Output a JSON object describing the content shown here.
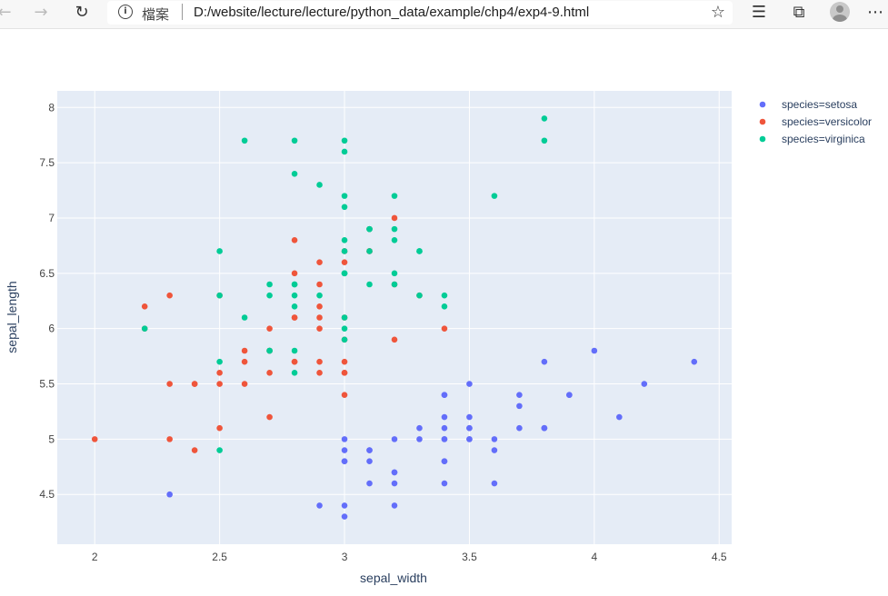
{
  "browser": {
    "url_label": "檔案",
    "url": "D:/website/lecture/lecture/python_data/example/chp4/exp4-9.html",
    "icons": [
      "back-icon",
      "forward-icon",
      "refresh-icon",
      "info-icon",
      "favorite-star-icon",
      "reading-list-icon",
      "collections-icon",
      "profile-avatar",
      "more-icon"
    ]
  },
  "colors": {
    "setosa": "#636efa",
    "versicolor": "#EF553B",
    "virginica": "#00cc96",
    "plot_bg": "#E5ECF6",
    "grid": "#ffffff"
  },
  "chart_data": {
    "type": "scatter",
    "xlabel": "sepal_width",
    "ylabel": "sepal_length",
    "xlim": [
      1.85,
      4.55
    ],
    "ylim": [
      4.05,
      8.15
    ],
    "xticks": [
      2,
      2.5,
      3,
      3.5,
      4,
      4.5
    ],
    "xtick_labels": [
      "2",
      "2.5",
      "3",
      "3.5",
      "4",
      "4.5"
    ],
    "yticks": [
      4.5,
      5,
      5.5,
      6,
      6.5,
      7,
      7.5,
      8
    ],
    "ytick_labels": [
      "4.5",
      "5",
      "5.5",
      "6",
      "6.5",
      "7",
      "7.5",
      "8"
    ],
    "grid": true,
    "legend_position": "right",
    "series": [
      {
        "name": "species=setosa",
        "color": "#636efa",
        "points": [
          [
            3.5,
            5.1
          ],
          [
            3.0,
            4.9
          ],
          [
            3.2,
            4.7
          ],
          [
            3.1,
            4.6
          ],
          [
            3.6,
            5.0
          ],
          [
            3.9,
            5.4
          ],
          [
            3.4,
            4.6
          ],
          [
            3.4,
            5.0
          ],
          [
            2.9,
            4.4
          ],
          [
            3.1,
            4.9
          ],
          [
            3.7,
            5.4
          ],
          [
            3.4,
            4.8
          ],
          [
            3.0,
            4.8
          ],
          [
            3.0,
            4.3
          ],
          [
            4.0,
            5.8
          ],
          [
            4.4,
            5.7
          ],
          [
            3.9,
            5.4
          ],
          [
            3.5,
            5.1
          ],
          [
            3.8,
            5.7
          ],
          [
            3.8,
            5.1
          ],
          [
            3.4,
            5.4
          ],
          [
            3.7,
            5.1
          ],
          [
            3.6,
            4.6
          ],
          [
            3.3,
            5.1
          ],
          [
            3.4,
            4.8
          ],
          [
            3.0,
            5.0
          ],
          [
            3.4,
            5.0
          ],
          [
            3.5,
            5.2
          ],
          [
            3.4,
            5.2
          ],
          [
            3.2,
            4.7
          ],
          [
            3.1,
            4.8
          ],
          [
            3.4,
            5.4
          ],
          [
            4.1,
            5.2
          ],
          [
            4.2,
            5.5
          ],
          [
            3.1,
            4.9
          ],
          [
            3.2,
            5.0
          ],
          [
            3.5,
            5.5
          ],
          [
            3.6,
            4.9
          ],
          [
            3.0,
            4.4
          ],
          [
            3.4,
            5.1
          ],
          [
            3.5,
            5.0
          ],
          [
            2.3,
            4.5
          ],
          [
            3.2,
            4.4
          ],
          [
            3.5,
            5.0
          ],
          [
            3.8,
            5.1
          ],
          [
            3.0,
            4.8
          ],
          [
            3.8,
            5.1
          ],
          [
            3.2,
            4.6
          ],
          [
            3.7,
            5.3
          ],
          [
            3.3,
            5.0
          ]
        ]
      },
      {
        "name": "species=versicolor",
        "color": "#EF553B",
        "points": [
          [
            3.2,
            7.0
          ],
          [
            3.2,
            6.4
          ],
          [
            3.1,
            6.9
          ],
          [
            2.3,
            5.5
          ],
          [
            2.8,
            6.5
          ],
          [
            2.8,
            5.7
          ],
          [
            3.3,
            6.3
          ],
          [
            2.4,
            4.9
          ],
          [
            2.9,
            6.6
          ],
          [
            2.7,
            5.2
          ],
          [
            2.0,
            5.0
          ],
          [
            3.0,
            5.9
          ],
          [
            2.2,
            6.0
          ],
          [
            2.9,
            6.1
          ],
          [
            2.9,
            5.6
          ],
          [
            3.1,
            6.7
          ],
          [
            3.0,
            5.6
          ],
          [
            2.7,
            5.8
          ],
          [
            2.2,
            6.2
          ],
          [
            2.5,
            5.6
          ],
          [
            3.2,
            5.9
          ],
          [
            2.8,
            6.1
          ],
          [
            2.5,
            6.3
          ],
          [
            2.8,
            6.1
          ],
          [
            2.9,
            6.4
          ],
          [
            3.0,
            6.6
          ],
          [
            2.8,
            6.8
          ],
          [
            3.0,
            6.7
          ],
          [
            2.9,
            6.0
          ],
          [
            2.6,
            5.7
          ],
          [
            2.4,
            5.5
          ],
          [
            2.4,
            5.5
          ],
          [
            2.7,
            5.8
          ],
          [
            2.7,
            6.0
          ],
          [
            3.0,
            5.4
          ],
          [
            3.4,
            6.0
          ],
          [
            3.1,
            6.7
          ],
          [
            2.3,
            6.3
          ],
          [
            3.0,
            5.6
          ],
          [
            2.5,
            5.5
          ],
          [
            2.6,
            5.5
          ],
          [
            3.0,
            6.1
          ],
          [
            2.6,
            5.8
          ],
          [
            2.3,
            5.0
          ],
          [
            2.7,
            5.6
          ],
          [
            3.0,
            5.7
          ],
          [
            2.9,
            5.7
          ],
          [
            2.9,
            6.2
          ],
          [
            2.5,
            5.1
          ],
          [
            2.8,
            5.7
          ]
        ]
      },
      {
        "name": "species=virginica",
        "color": "#00cc96",
        "points": [
          [
            3.3,
            6.3
          ],
          [
            2.7,
            5.8
          ],
          [
            3.0,
            7.1
          ],
          [
            2.9,
            6.3
          ],
          [
            3.0,
            6.5
          ],
          [
            3.0,
            7.6
          ],
          [
            2.5,
            4.9
          ],
          [
            2.9,
            7.3
          ],
          [
            2.5,
            6.7
          ],
          [
            3.6,
            7.2
          ],
          [
            3.2,
            6.5
          ],
          [
            2.7,
            6.4
          ],
          [
            3.0,
            6.8
          ],
          [
            2.5,
            5.7
          ],
          [
            2.8,
            5.8
          ],
          [
            3.2,
            6.4
          ],
          [
            3.0,
            6.5
          ],
          [
            3.8,
            7.7
          ],
          [
            2.6,
            7.7
          ],
          [
            2.2,
            6.0
          ],
          [
            3.2,
            6.9
          ],
          [
            2.8,
            5.6
          ],
          [
            2.8,
            7.7
          ],
          [
            2.7,
            6.3
          ],
          [
            3.3,
            6.7
          ],
          [
            3.2,
            7.2
          ],
          [
            2.8,
            6.2
          ],
          [
            3.0,
            6.1
          ],
          [
            2.8,
            6.4
          ],
          [
            3.0,
            7.2
          ],
          [
            2.8,
            7.4
          ],
          [
            3.8,
            7.9
          ],
          [
            2.8,
            6.4
          ],
          [
            2.8,
            6.3
          ],
          [
            2.6,
            6.1
          ],
          [
            3.0,
            7.7
          ],
          [
            3.4,
            6.3
          ],
          [
            3.1,
            6.4
          ],
          [
            3.0,
            6.0
          ],
          [
            3.1,
            6.9
          ],
          [
            3.1,
            6.7
          ],
          [
            3.1,
            6.9
          ],
          [
            2.7,
            5.8
          ],
          [
            3.2,
            6.8
          ],
          [
            3.3,
            6.7
          ],
          [
            3.0,
            6.7
          ],
          [
            2.5,
            6.3
          ],
          [
            3.0,
            6.5
          ],
          [
            3.4,
            6.2
          ],
          [
            3.0,
            5.9
          ]
        ]
      }
    ]
  }
}
